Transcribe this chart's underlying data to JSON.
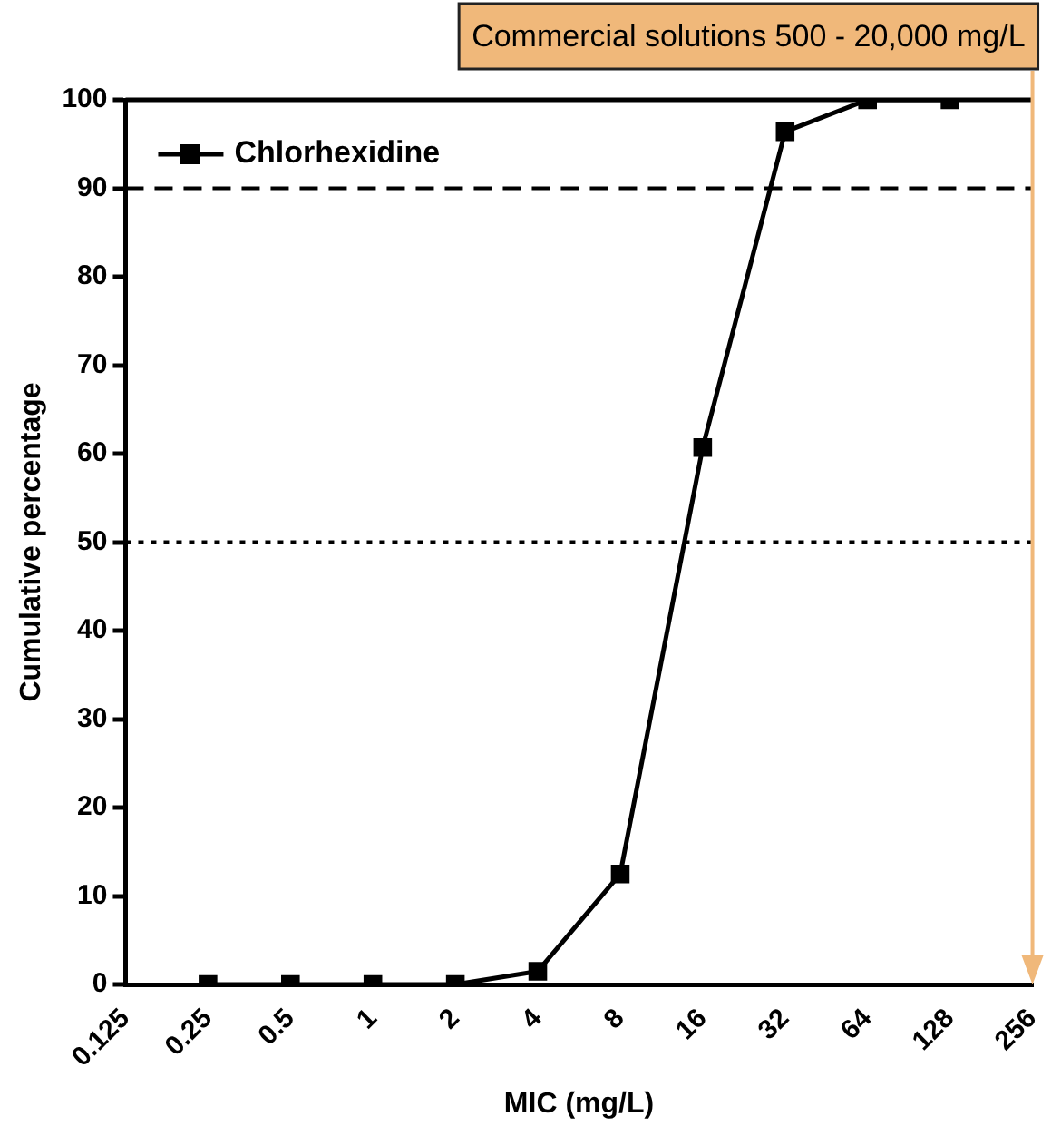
{
  "chart_data": {
    "type": "line",
    "xlabel": "MIC (mg/L)",
    "ylabel": "Cumulative percentage",
    "x": [
      0.25,
      0.5,
      1,
      2,
      4,
      8,
      16,
      32,
      64,
      128
    ],
    "series": [
      {
        "name": "Chlorhexidine",
        "color": "#000000",
        "values": [
          0,
          0,
          0,
          0,
          1.5,
          12.5,
          60.7,
          96.4,
          100,
          100
        ]
      }
    ],
    "log": "x",
    "xlim": [
      0.125,
      256
    ],
    "xticks": [
      0.125,
      0.25,
      0.5,
      1,
      2,
      4,
      8,
      16,
      32,
      64,
      128,
      256
    ],
    "ylim": [
      0,
      100
    ],
    "yticks": [
      0,
      10,
      20,
      30,
      40,
      50,
      60,
      70,
      80,
      90,
      100
    ],
    "ref_lines": [
      {
        "axis": "y",
        "value": 90,
        "line_style": "dashed",
        "color": "#000000"
      },
      {
        "axis": "y",
        "value": 50,
        "line_style": "dotted",
        "color": "#000000"
      },
      {
        "axis": "x",
        "value": 256,
        "label": "Commercial solutions 500 - 20,000 mg/L",
        "color": "#f0b87a"
      }
    ],
    "grid": false,
    "legend": "top left",
    "marker": "square",
    "line_style": "solid"
  }
}
